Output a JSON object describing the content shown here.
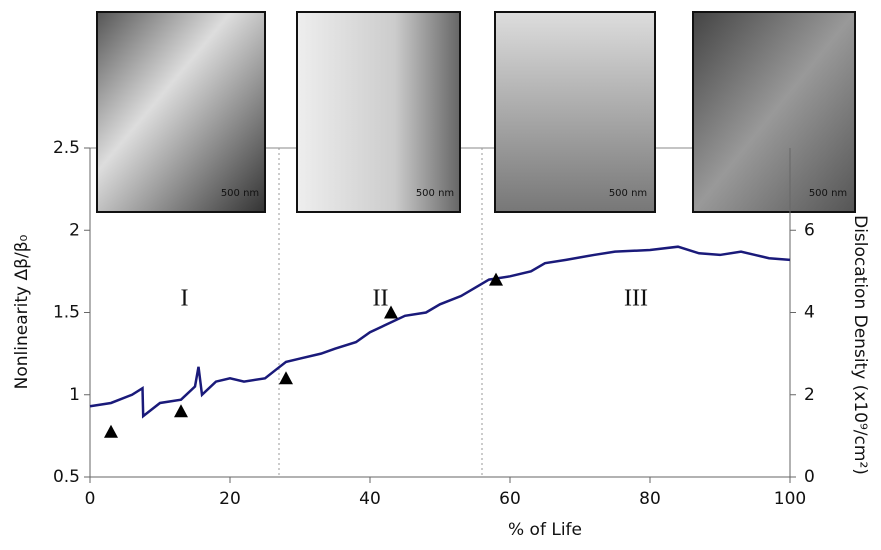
{
  "chart_data": {
    "type": "line",
    "xlabel": "% of Life",
    "ylabel": "Nonlinearity Δβ/β₀",
    "y2label": "Dislocation Density (x10⁹/cm²)",
    "xlim": [
      0,
      100
    ],
    "xticks": [
      0,
      20,
      40,
      60,
      80,
      100
    ],
    "ylim": [
      0.5,
      2.5
    ],
    "yticks": [
      0.5,
      1,
      1.5,
      2,
      2.5
    ],
    "y2lim": [
      0,
      8
    ],
    "y2ticks": [
      0,
      2,
      4,
      6
    ],
    "region_boundaries": [
      27,
      56
    ],
    "region_labels": [
      "I",
      "II",
      "III"
    ],
    "image_scale_labels": [
      "500 nm",
      "500 nm",
      "500 nm",
      "500 nm"
    ],
    "series": [
      {
        "color": "#1a1a7a",
        "x": [
          0,
          3,
          6,
          7.5,
          7.6,
          10,
          13,
          15,
          15.5,
          16,
          18,
          20,
          22,
          25,
          26.5,
          28,
          30,
          33,
          35,
          38,
          40,
          42,
          45,
          48,
          50,
          53,
          55,
          57,
          60,
          63,
          65,
          68,
          72,
          75,
          80,
          84,
          87,
          90,
          93,
          95,
          97,
          100
        ],
        "values": [
          0.93,
          0.95,
          1.0,
          1.04,
          0.87,
          0.95,
          0.97,
          1.05,
          1.17,
          1.0,
          1.08,
          1.1,
          1.08,
          1.1,
          1.15,
          1.2,
          1.22,
          1.25,
          1.28,
          1.32,
          1.38,
          1.42,
          1.48,
          1.5,
          1.55,
          1.6,
          1.65,
          1.7,
          1.72,
          1.75,
          1.8,
          1.82,
          1.85,
          1.87,
          1.88,
          1.9,
          1.86,
          1.85,
          1.87,
          1.85,
          1.83,
          1.82
        ]
      },
      {
        "color": "#000000",
        "axis": "y2",
        "marker": "triangle",
        "x": [
          3,
          13,
          28,
          43,
          58
        ],
        "values": [
          1.1,
          1.6,
          2.4,
          4.0,
          4.8
        ]
      }
    ]
  }
}
